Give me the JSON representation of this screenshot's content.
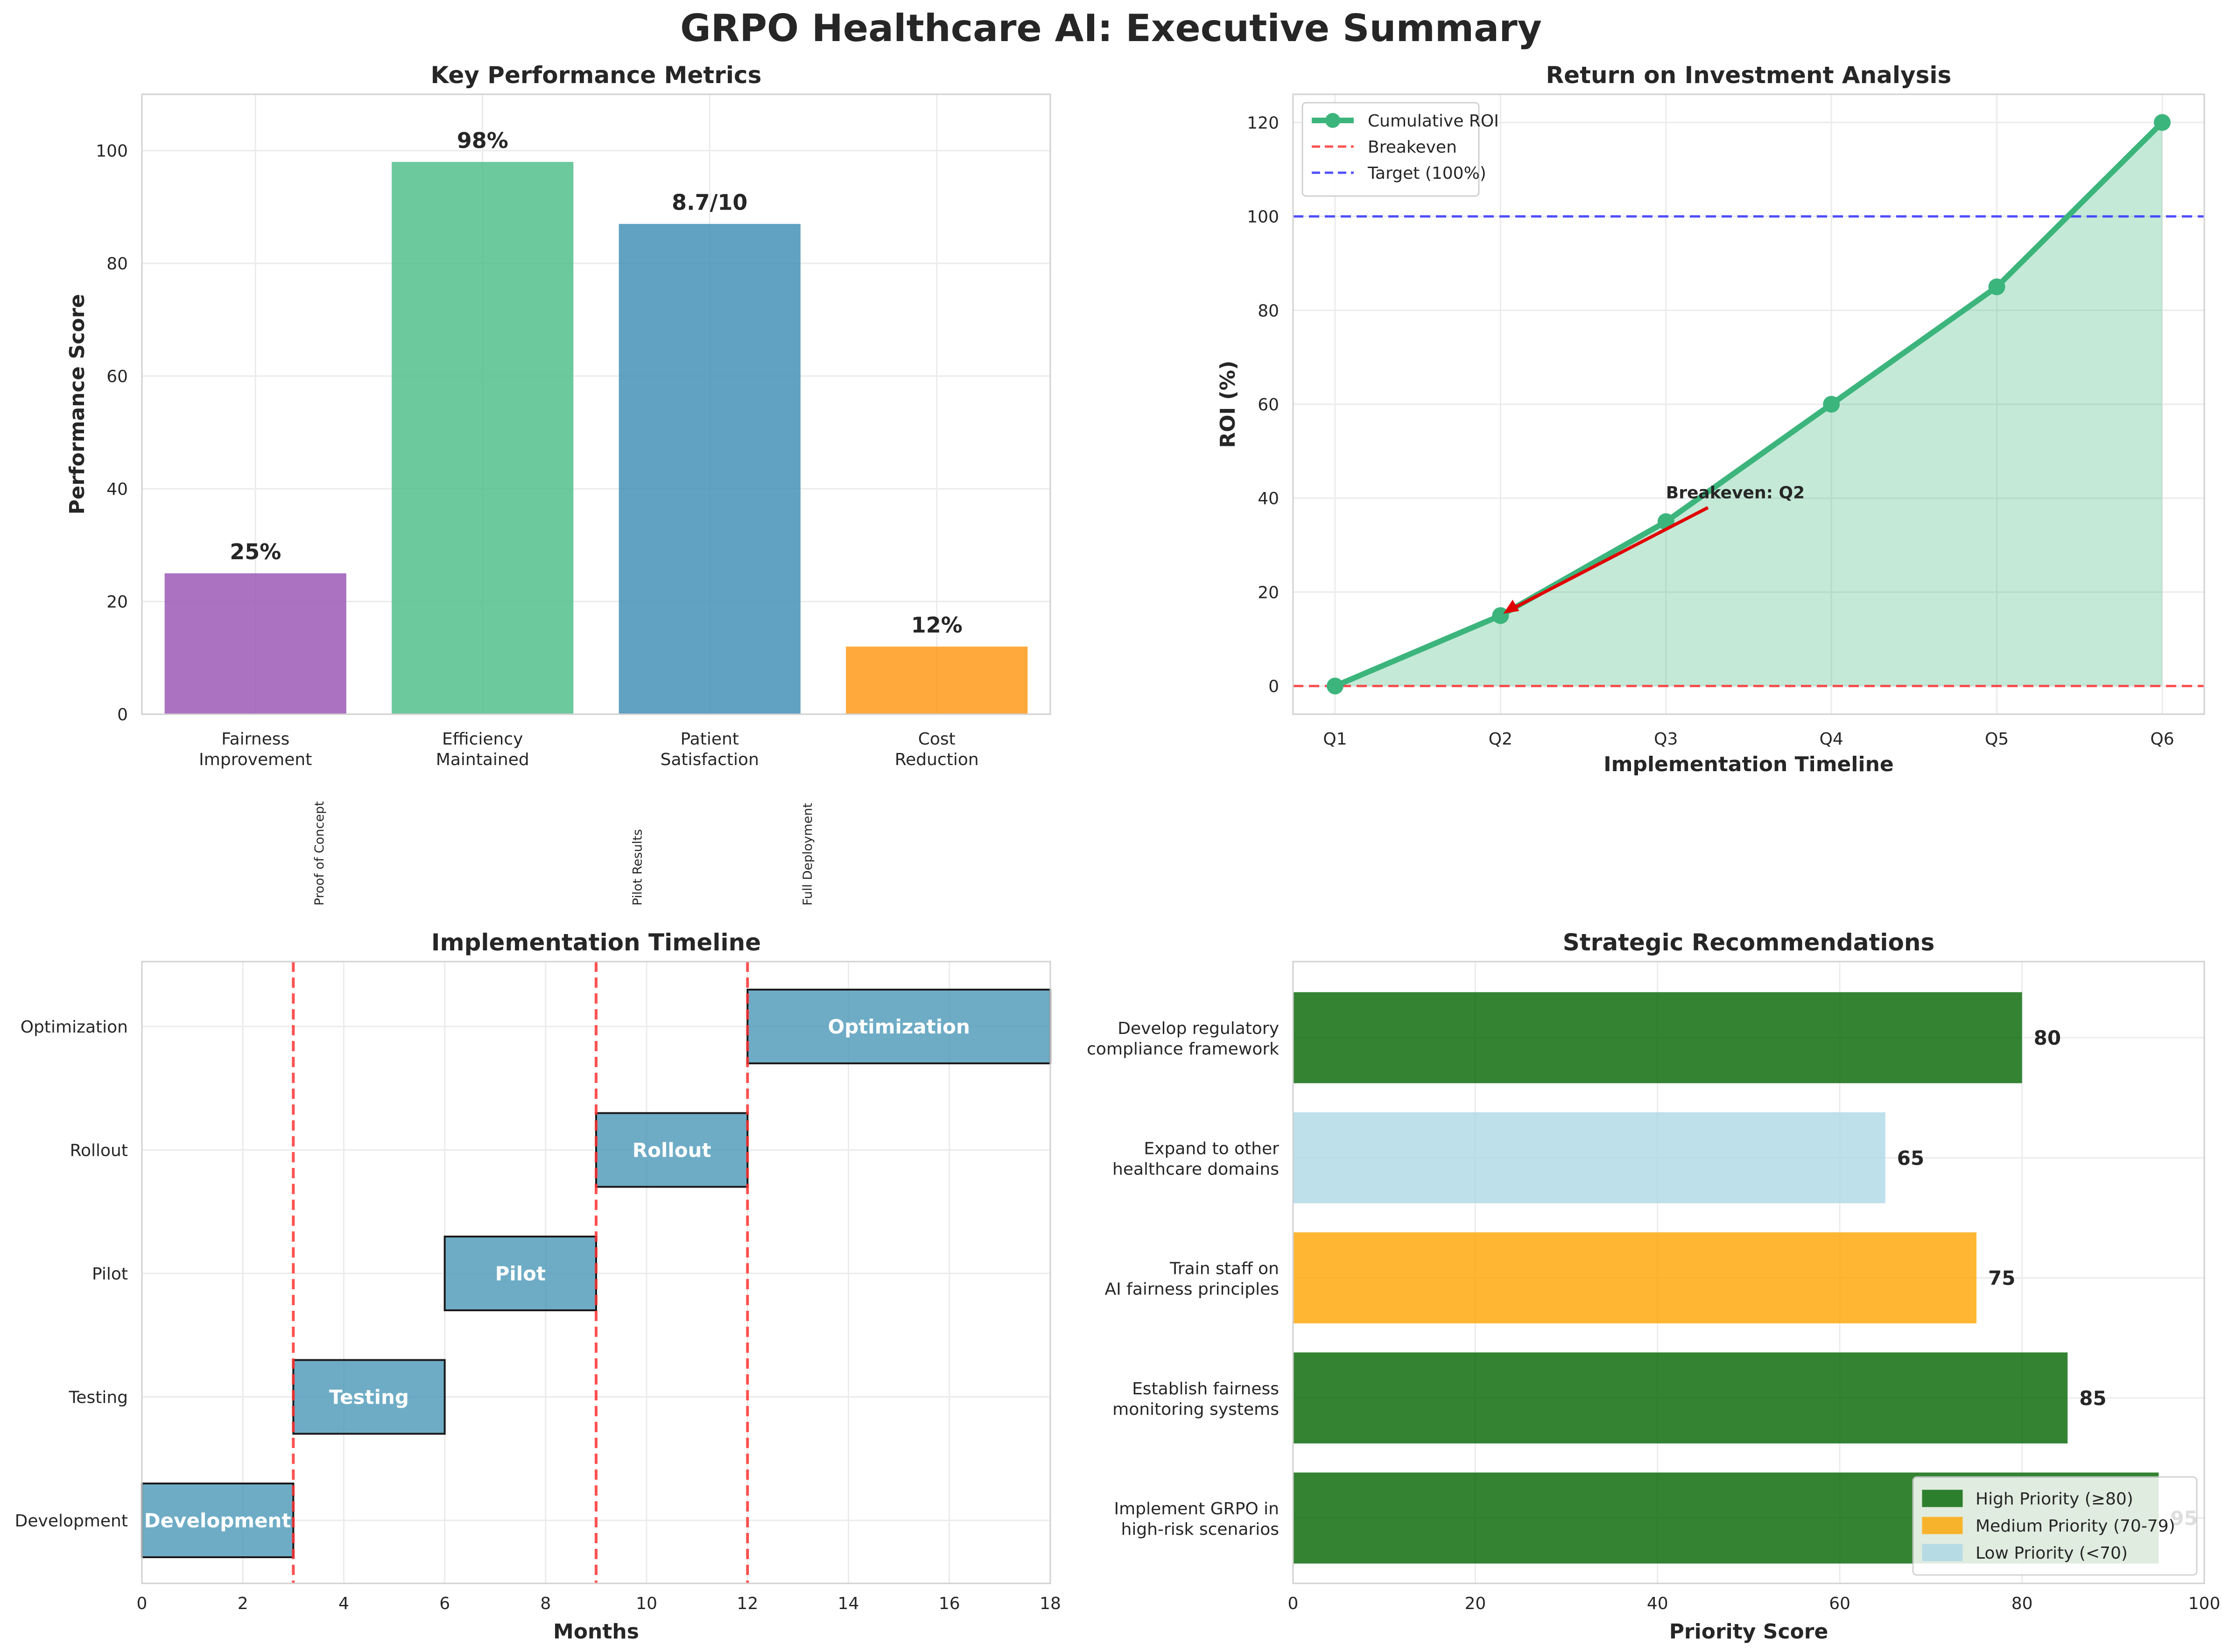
{
  "suptitle": "GRPO Healthcare AI: Executive Summary",
  "chart_data": [
    {
      "id": "metrics",
      "type": "bar",
      "title": "Key Performance Metrics",
      "xlabel": "",
      "ylabel": "Performance Score",
      "ylim": [
        0,
        110
      ],
      "yticks": [
        0,
        20,
        40,
        60,
        80,
        100
      ],
      "grid": true,
      "categories": [
        [
          "Fairness",
          "Improvement"
        ],
        [
          "Efficiency",
          "Maintained"
        ],
        [
          "Patient",
          "Satisfaction"
        ],
        [
          "Cost",
          "Reduction"
        ]
      ],
      "values": [
        25,
        98,
        87,
        12
      ],
      "value_labels": [
        "25%",
        "98%",
        "8.7/10",
        "12%"
      ],
      "colors": [
        "#9b59b6",
        "#52c08c",
        "#4591b7",
        "#ff9a1a"
      ],
      "annotations": [
        {
          "text": "Proof of Concept",
          "x": 0.3
        },
        {
          "text": "Pilot Results",
          "x": 1.7
        },
        {
          "text": "Full Deployment",
          "x": 2.45
        }
      ]
    },
    {
      "id": "roi",
      "type": "line",
      "title": "Return on Investment Analysis",
      "xlabel": "Implementation Timeline",
      "ylabel": "ROI (%)",
      "ylim": [
        -6,
        126
      ],
      "yticks": [
        0,
        20,
        40,
        60,
        80,
        100,
        120
      ],
      "grid": true,
      "x": [
        "Q1",
        "Q2",
        "Q3",
        "Q4",
        "Q5",
        "Q6"
      ],
      "series": [
        {
          "name": "Cumulative ROI",
          "values": [
            0,
            15,
            35,
            60,
            85,
            120
          ],
          "color": "#3cb57c"
        }
      ],
      "hlines": [
        {
          "name": "Breakeven",
          "y": 0,
          "color": "#ff3333"
        },
        {
          "name": "Target (100%)",
          "y": 100,
          "color": "#3333ff"
        }
      ],
      "annotation": {
        "text": "Breakeven: Q2",
        "target_x": 1,
        "target_y": 15,
        "text_x": 2.0,
        "text_y": 38
      },
      "legend": "top-left"
    },
    {
      "id": "timeline",
      "type": "bar",
      "orientation": "gantt",
      "title": "Implementation Timeline",
      "xlabel": "Months",
      "ylabel": "",
      "xlim": [
        0,
        18
      ],
      "xticks": [
        0,
        2,
        4,
        6,
        8,
        10,
        12,
        14,
        16,
        18
      ],
      "grid": true,
      "tasks": [
        {
          "name": "Development",
          "start": 0,
          "duration": 3
        },
        {
          "name": "Testing",
          "start": 3,
          "duration": 3
        },
        {
          "name": "Pilot",
          "start": 6,
          "duration": 3
        },
        {
          "name": "Rollout",
          "start": 9,
          "duration": 3
        },
        {
          "name": "Optimization",
          "start": 12,
          "duration": 6
        }
      ],
      "milestones": [
        3,
        9,
        12
      ],
      "bar_color": "#4a97b8"
    },
    {
      "id": "recommendations",
      "type": "bar",
      "orientation": "horizontal",
      "title": "Strategic Recommendations",
      "xlabel": "Priority Score",
      "ylabel": "",
      "xlim": [
        0,
        100
      ],
      "xticks": [
        0,
        20,
        40,
        60,
        80,
        100
      ],
      "grid": true,
      "categories": [
        [
          "Implement GRPO in",
          "high-risk scenarios"
        ],
        [
          "Establish fairness",
          "monitoring systems"
        ],
        [
          "Train staff on",
          "AI fairness principles"
        ],
        [
          "Expand to other",
          "healthcare domains"
        ],
        [
          "Develop regulatory",
          "compliance framework"
        ]
      ],
      "values": [
        95,
        85,
        75,
        65,
        80
      ],
      "legend": [
        {
          "name": "High Priority (≥80)",
          "color": "#006400"
        },
        {
          "name": "Medium Priority (70-79)",
          "color": "#ffa500"
        },
        {
          "name": "Low Priority (<70)",
          "color": "#add8e6"
        }
      ],
      "legend_position": "lower-right"
    }
  ]
}
